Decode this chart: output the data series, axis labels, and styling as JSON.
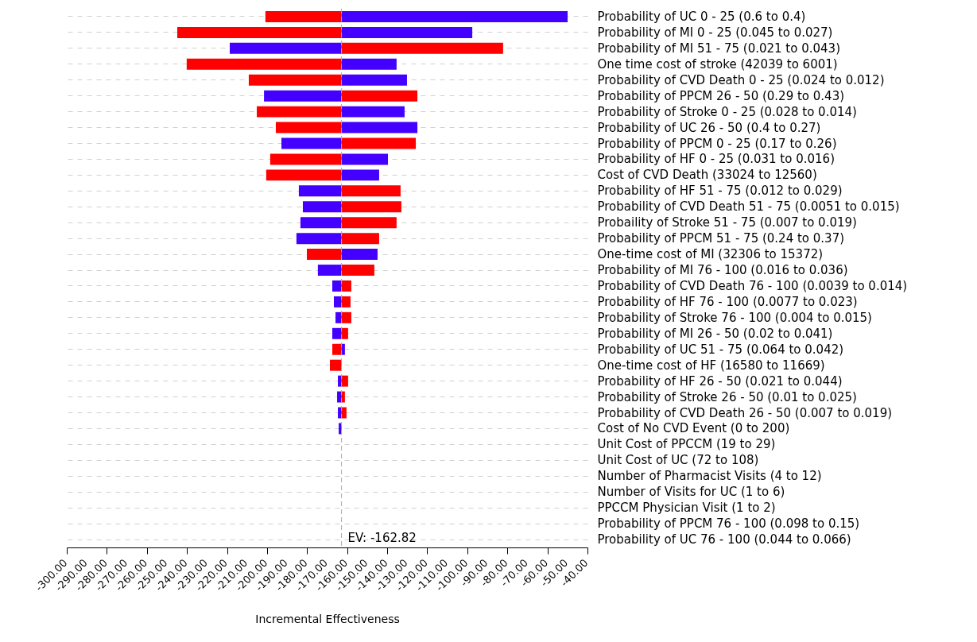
{
  "chart_data": {
    "type": "bar",
    "orientation": "horizontal",
    "xlabel": "Incremental Effectiveness",
    "grid": "y",
    "categories": [
      "Probability of UC 0 - 25 (0.6 to 0.4)",
      "Probability of MI 0 - 25 (0.045 to 0.027)",
      "Probability of MI 51 - 75 (0.021 to 0.043)",
      "One time cost of stroke (42039 to 6001)",
      "Probability of CVD Death 0 - 25 (0.024 to 0.012)",
      "Probability of PPCM 26 - 50 (0.29 to 0.43)",
      "Probability of Stroke 0 - 25 (0.028 to 0.014)",
      "Probability of UC 26 - 50 (0.4 to 0.27)",
      "Probability of PPCM 0 - 25 (0.17 to 0.26)",
      "Probability of HF 0 - 25 (0.031 to 0.016)",
      "Cost of CVD Death (33024 to 12560)",
      "Probability of HF 51 - 75 (0.012 to 0.029)",
      "Probability of CVD Death 51 - 75 (0.0051 to 0.015)",
      "Probaility of Stroke 51 - 75 (0.007 to 0.019)",
      "Probability of PPCM 51 - 75 (0.24 to 0.37)",
      "One-time cost of MI (32306 to 15372)",
      "Probability of MI 76 - 100 (0.016 to 0.036)",
      "Probability of CVD Death 76 - 100 (0.0039 to 0.014)",
      "Probability of HF 76 - 100 (0.0077 to 0.023)",
      "Probability of Stroke 76 - 100 (0.004 to 0.015)",
      "Probability of MI 26 - 50 (0.02 to 0.041)",
      "Probability of UC 51 - 75 (0.064 to 0.042)",
      "One-time cost of HF (16580 to 11669)",
      "Probability of HF 26 - 50 (0.021 to 0.044)",
      "Probability of Stroke 26 - 50 (0.01 to 0.025)",
      "Probability of CVD Death 26 - 50 (0.007 to 0.019)",
      "Cost of No CVD Event (0 to 200)",
      "Unit Cost of PPCCM (19 to 29)",
      "Unit Cost of UC (72 to 108)",
      "Number of Pharmacist Visits (4 to 12)",
      "Number of Visits for UC (1 to 6)",
      "PPCCM Physician Visit (1 to 2)",
      "Probability of PPCM 76 - 100 (0.098 to 0.15)",
      "Probability of UC 76 - 100 (0.044 to 0.066)"
    ],
    "series": [
      {
        "color": "#ff0000",
        "base": [
          -162.82,
          -162.82,
          -162.82,
          -162.82,
          -162.82,
          -162.82,
          -162.82,
          -162.82,
          -162.82,
          -162.82,
          -162.82,
          -162.82,
          -162.82,
          -162.82,
          -162.82,
          -162.82,
          -162.82,
          -162.82,
          -162.82,
          -162.82,
          -162.82,
          -162.82,
          -162.82,
          -162.82,
          -162.82,
          -162.82,
          null,
          null,
          null,
          null,
          null,
          null,
          null,
          null
        ],
        "values": [
          -38.0,
          -82.0,
          80.7,
          -77.3,
          -46.3,
          37.9,
          -42.3,
          -32.8,
          37.1,
          -35.6,
          -37.6,
          29.5,
          29.9,
          27.5,
          18.8,
          -17.3,
          16.4,
          4.9,
          4.5,
          4.9,
          3.3,
          -4.6,
          -5.8,
          3.3,
          1.7,
          2.5,
          null,
          null,
          null,
          null,
          null,
          null,
          null,
          null
        ]
      },
      {
        "color": "#4400ff",
        "base": [
          -162.82,
          -162.82,
          -162.82,
          -162.82,
          -162.82,
          -162.82,
          -162.82,
          -162.82,
          -162.82,
          -162.82,
          -162.82,
          -162.82,
          -162.82,
          -162.82,
          -162.82,
          -162.82,
          -162.82,
          -162.82,
          -162.82,
          -162.82,
          -162.82,
          -162.82,
          null,
          -162.82,
          -162.82,
          -162.82,
          -162.82,
          null,
          null,
          null,
          null,
          null,
          null,
          null
        ],
        "values": [
          112.9,
          65.3,
          -55.8,
          27.5,
          32.7,
          -38.7,
          31.5,
          37.9,
          -30.0,
          23.2,
          18.8,
          -21.3,
          -19.3,
          -20.5,
          -22.5,
          18.0,
          -11.8,
          -4.6,
          -3.8,
          -3.0,
          -4.6,
          1.7,
          null,
          -1.8,
          -2.2,
          -1.8,
          -1.4,
          null,
          null,
          null,
          null,
          null,
          null,
          null
        ]
      }
    ],
    "ref_lines": [
      {
        "axis": "x",
        "value": -162.82,
        "label": "EV: -162.82",
        "color": "#aaaaaa",
        "line_style": "dashed"
      }
    ],
    "xlim": [
      -300,
      -40
    ],
    "xticks": [
      {
        "value": -300,
        "label": "-300.00"
      },
      {
        "value": -290,
        "label": "-290.00"
      },
      {
        "value": -280,
        "label": "-280.00"
      },
      {
        "value": -270,
        "label": "-270.00"
      },
      {
        "value": -260,
        "label": "-260.00"
      },
      {
        "value": -250,
        "label": "-250.00"
      },
      {
        "value": -240,
        "label": "-240.00"
      },
      {
        "value": -230,
        "label": "-230.00"
      },
      {
        "value": -220,
        "label": "-220.00"
      },
      {
        "value": -210,
        "label": "-210.00"
      },
      {
        "value": -200,
        "label": "-200.00"
      },
      {
        "value": -190,
        "label": "-190.00"
      },
      {
        "value": -180,
        "label": "-180.00"
      },
      {
        "value": -170,
        "label": "-170.00"
      },
      {
        "value": -160,
        "label": "-160.00"
      },
      {
        "value": -150,
        "label": "-150.00"
      },
      {
        "value": -140,
        "label": "-140.00"
      },
      {
        "value": -130,
        "label": "-130.00"
      },
      {
        "value": -120,
        "label": "-120.00"
      },
      {
        "value": -110,
        "label": "-110.00"
      },
      {
        "value": -100,
        "label": "-100.00"
      },
      {
        "value": -90,
        "label": "-90.00"
      },
      {
        "value": -80,
        "label": "-80.00"
      },
      {
        "value": -70,
        "label": "-70.00"
      },
      {
        "value": -60,
        "label": "-60.00"
      },
      {
        "value": -50,
        "label": "-50.00"
      },
      {
        "value": -40,
        "label": "-40.00"
      }
    ]
  }
}
